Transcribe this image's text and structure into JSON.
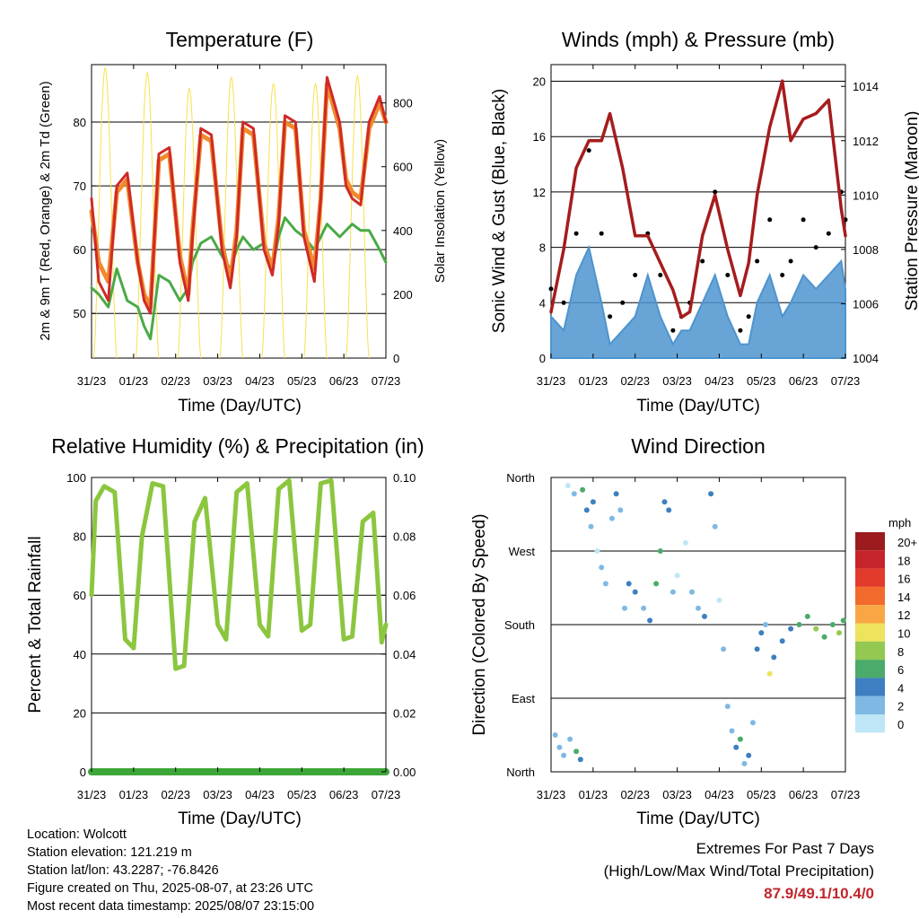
{
  "x_ticks": [
    "31/23",
    "01/23",
    "02/23",
    "03/23",
    "04/23",
    "05/23",
    "06/23",
    "07/23"
  ],
  "x_axis_label": "Time (Day/UTC)",
  "temperature": {
    "title": "Temperature (F)",
    "left_label": "2m & 9m T (Red, Orange) & 2m Td (Green)",
    "right_label": "Solar Insolation (Yellow)",
    "left_ticks": [
      "50",
      "60",
      "70",
      "80"
    ],
    "right_ticks": [
      "0",
      "200",
      "400",
      "600",
      "800"
    ],
    "colors": {
      "t2m": "#cf2a27",
      "t9m": "#f08a2c",
      "td": "#4aaa46",
      "solar": "#f7e14d"
    }
  },
  "winds": {
    "title": "Winds (mph) & Pressure (mb)",
    "left_label": "Sonic Wind & Gust (Blue, Black)",
    "right_label": "Station Pressure (Maroon)",
    "left_ticks": [
      "0",
      "4",
      "8",
      "12",
      "16",
      "20"
    ],
    "right_ticks": [
      "1004",
      "1006",
      "1008",
      "1010",
      "1012",
      "1014"
    ],
    "colors": {
      "wind": "#4d94cf",
      "gust": "#000000",
      "pressure": "#a61c1c"
    }
  },
  "humidity": {
    "title": "Relative Humidity (%) & Precipitation (in)",
    "left_label": "Percent & Total Rainfall",
    "left_ticks": [
      "0",
      "20",
      "40",
      "60",
      "80",
      "100"
    ],
    "right_ticks": [
      "0.00",
      "0.02",
      "0.04",
      "0.06",
      "0.08",
      "0.10"
    ],
    "colors": {
      "rh": "#8cc63f",
      "precip": "#3da638"
    }
  },
  "direction": {
    "title": "Wind Direction",
    "left_label": "Direction (Colored By Speed)",
    "y_ticks": [
      "North",
      "East",
      "South",
      "West",
      "North"
    ],
    "legend_title": "mph",
    "legend": [
      {
        "label": "20+",
        "color": "#9b1b1e"
      },
      {
        "label": "18",
        "color": "#c5242a"
      },
      {
        "label": "16",
        "color": "#e23b2b"
      },
      {
        "label": "14",
        "color": "#f26a2c"
      },
      {
        "label": "12",
        "color": "#f9a745"
      },
      {
        "label": "10",
        "color": "#ede35c"
      },
      {
        "label": "8",
        "color": "#93c951"
      },
      {
        "label": "6",
        "color": "#4aab6a"
      },
      {
        "label": "4",
        "color": "#3d7fc0"
      },
      {
        "label": "2",
        "color": "#7fb9e3"
      },
      {
        "label": "0",
        "color": "#bfe6f7"
      }
    ]
  },
  "info": {
    "location": "Location: Wolcott",
    "elevation": "Station elevation: 121.219 m",
    "latlon": "Station lat/lon: 43.2287; -76.8426",
    "created": "Figure created on Thu, 2025-08-07, at 23:26 UTC",
    "recent": "Most recent data timestamp: 2025/08/07 23:15:00"
  },
  "extremes": {
    "title": "Extremes For Past 7 Days",
    "subtitle": "(High/Low/Max Wind/Total Precipitation)",
    "values": "87.9/49.1/10.4/0"
  },
  "chart_data": [
    {
      "type": "line",
      "title": "Temperature (F)",
      "xlabel": "Time (Day/UTC)",
      "ylabel": "2m & 9m T (Red, Orange) & 2m Td (Green)",
      "y2label": "Solar Insolation (Yellow)",
      "ylim": [
        43,
        89
      ],
      "y2lim": [
        0,
        920
      ],
      "x_unit": "days since 31/23",
      "x": [
        0,
        0.17,
        0.4,
        0.6,
        0.85,
        1.1,
        1.25,
        1.4,
        1.6,
        1.85,
        2.1,
        2.3,
        2.4,
        2.6,
        2.85,
        3.1,
        3.3,
        3.45,
        3.6,
        3.85,
        4.1,
        4.3,
        4.45,
        4.6,
        4.85,
        5.05,
        5.3,
        5.45,
        5.6,
        5.9,
        6.05,
        6.2,
        6.4,
        6.6,
        6.85,
        7.0
      ],
      "series": [
        {
          "name": "2m T",
          "values": [
            68,
            55,
            52,
            70,
            72,
            58,
            52,
            50,
            75,
            76,
            58,
            52,
            62,
            79,
            78,
            60,
            54,
            62,
            80,
            79,
            60,
            56,
            64,
            81,
            80,
            62,
            55,
            68,
            87,
            80,
            70,
            68,
            67,
            80,
            84,
            80
          ]
        },
        {
          "name": "9m T",
          "values": [
            66,
            58,
            55,
            69,
            71,
            58,
            53,
            51,
            74,
            75,
            59,
            53,
            63,
            78,
            77,
            61,
            55,
            63,
            79,
            78,
            61,
            57,
            65,
            80,
            79,
            63,
            57,
            68,
            86,
            79,
            71,
            69,
            68,
            79,
            83,
            80
          ]
        },
        {
          "name": "2m Td",
          "values": [
            54,
            53,
            51,
            57,
            52,
            51,
            48,
            46,
            56,
            55,
            52,
            54,
            58,
            61,
            62,
            59,
            57,
            60,
            62,
            60,
            61,
            57,
            62,
            65,
            63,
            62,
            60,
            62,
            64,
            62,
            63,
            64,
            63,
            63,
            60,
            58
          ]
        },
        {
          "name": "Solar",
          "y_axis": "right",
          "values": [
            0,
            0,
            0,
            0,
            0,
            0,
            0,
            0,
            0,
            0,
            0,
            0,
            0,
            0,
            0,
            0,
            0,
            0,
            0,
            0,
            0,
            0,
            0,
            0,
            0,
            0,
            0,
            0,
            0,
            0,
            0,
            0,
            0,
            0,
            0,
            0
          ],
          "daily_peaks": [
            910,
            895,
            845,
            880,
            860,
            860,
            885
          ]
        }
      ]
    },
    {
      "type": "line",
      "title": "Winds (mph) & Pressure (mb)",
      "xlabel": "Time (Day/UTC)",
      "ylabel": "Sonic Wind & Gust (Blue, Black)",
      "y2label": "Station Pressure (Maroon)",
      "ylim": [
        0,
        21.2
      ],
      "y2lim": [
        1004,
        1014.8
      ],
      "x_unit": "days since 31/23",
      "x": [
        0,
        0.3,
        0.6,
        0.9,
        1.2,
        1.4,
        1.7,
        2.0,
        2.3,
        2.6,
        2.9,
        3.1,
        3.3,
        3.6,
        3.9,
        4.2,
        4.5,
        4.7,
        4.9,
        5.2,
        5.5,
        5.7,
        6.0,
        6.3,
        6.6,
        6.9,
        7.0
      ],
      "series": [
        {
          "name": "Sonic Wind",
          "values": [
            3,
            2,
            6,
            8,
            4,
            1,
            2,
            3,
            6,
            3,
            1,
            2,
            2,
            4,
            6,
            3,
            1,
            1,
            4,
            6,
            3,
            4,
            6,
            5,
            6,
            7,
            5
          ]
        },
        {
          "name": "Gust",
          "values": [
            5,
            4,
            9,
            15,
            9,
            3,
            4,
            6,
            9,
            6,
            2,
            3,
            4,
            7,
            12,
            6,
            2,
            3,
            7,
            10,
            6,
            7,
            10,
            8,
            9,
            12,
            10
          ]
        },
        {
          "name": "Station Pressure",
          "y_axis": "right",
          "values": [
            1005.7,
            1008.0,
            1011.0,
            1012.0,
            1012.0,
            1013.0,
            1011.0,
            1008.5,
            1008.5,
            1007.5,
            1006.5,
            1005.5,
            1005.7,
            1008.5,
            1010.0,
            1008.0,
            1006.3,
            1007.5,
            1010.0,
            1012.5,
            1014.2,
            1012.0,
            1012.8,
            1013.0,
            1013.5,
            1009.5,
            1008.5
          ]
        }
      ]
    },
    {
      "type": "line",
      "title": "Relative Humidity (%) & Precipitation (in)",
      "xlabel": "Time (Day/UTC)",
      "ylabel": "Percent & Total Rainfall",
      "ylim": [
        0,
        100
      ],
      "y2lim": [
        0,
        0.1
      ],
      "x_unit": "days since 31/23",
      "x": [
        0,
        0.1,
        0.3,
        0.55,
        0.8,
        1.0,
        1.2,
        1.45,
        1.7,
        2.0,
        2.2,
        2.45,
        2.7,
        3.0,
        3.2,
        3.45,
        3.7,
        4.0,
        4.2,
        4.45,
        4.7,
        5.0,
        5.2,
        5.45,
        5.7,
        6.0,
        6.2,
        6.45,
        6.7,
        6.9,
        7.0
      ],
      "series": [
        {
          "name": "Relative Humidity",
          "values": [
            60,
            92,
            97,
            95,
            45,
            42,
            80,
            98,
            97,
            35,
            36,
            85,
            93,
            50,
            45,
            95,
            98,
            50,
            46,
            96,
            99,
            48,
            50,
            98,
            99,
            45,
            46,
            85,
            88,
            44,
            50
          ]
        },
        {
          "name": "Total Precipitation",
          "y_axis": "right",
          "values": [
            0,
            0,
            0,
            0,
            0,
            0,
            0,
            0,
            0,
            0,
            0,
            0,
            0,
            0,
            0,
            0,
            0,
            0,
            0,
            0,
            0,
            0,
            0,
            0,
            0,
            0,
            0,
            0,
            0,
            0,
            0
          ]
        }
      ]
    },
    {
      "type": "scatter",
      "title": "Wind Direction",
      "xlabel": "Time (Day/UTC)",
      "ylabel": "Direction (Colored By Speed)",
      "y_ticks": [
        "North",
        "East",
        "South",
        "West",
        "North"
      ],
      "ylim": [
        0,
        360
      ],
      "x_unit": "days since 31/23",
      "color_by": "speed (mph)",
      "points": [
        {
          "x": 0.1,
          "y": 45,
          "s": 2
        },
        {
          "x": 0.2,
          "y": 30,
          "s": 3
        },
        {
          "x": 0.3,
          "y": 20,
          "s": 2
        },
        {
          "x": 0.45,
          "y": 40,
          "s": 3
        },
        {
          "x": 0.6,
          "y": 25,
          "s": 6
        },
        {
          "x": 0.7,
          "y": 15,
          "s": 4
        },
        {
          "x": 0.4,
          "y": 350,
          "s": 1
        },
        {
          "x": 0.55,
          "y": 340,
          "s": 2
        },
        {
          "x": 0.75,
          "y": 345,
          "s": 6
        },
        {
          "x": 0.85,
          "y": 320,
          "s": 4
        },
        {
          "x": 0.95,
          "y": 300,
          "s": 3
        },
        {
          "x": 1.0,
          "y": 330,
          "s": 5
        },
        {
          "x": 1.1,
          "y": 270,
          "s": 1
        },
        {
          "x": 1.2,
          "y": 250,
          "s": 2
        },
        {
          "x": 1.3,
          "y": 230,
          "s": 2
        },
        {
          "x": 1.45,
          "y": 310,
          "s": 3
        },
        {
          "x": 1.55,
          "y": 340,
          "s": 4
        },
        {
          "x": 1.65,
          "y": 320,
          "s": 3
        },
        {
          "x": 1.75,
          "y": 200,
          "s": 3
        },
        {
          "x": 1.85,
          "y": 230,
          "s": 4
        },
        {
          "x": 2.0,
          "y": 220,
          "s": 4
        },
        {
          "x": 2.2,
          "y": 200,
          "s": 3
        },
        {
          "x": 2.35,
          "y": 185,
          "s": 4
        },
        {
          "x": 2.5,
          "y": 230,
          "s": 7
        },
        {
          "x": 2.6,
          "y": 270,
          "s": 6
        },
        {
          "x": 2.7,
          "y": 330,
          "s": 5
        },
        {
          "x": 2.8,
          "y": 320,
          "s": 4
        },
        {
          "x": 2.9,
          "y": 220,
          "s": 2
        },
        {
          "x": 3.0,
          "y": 240,
          "s": 1
        },
        {
          "x": 3.2,
          "y": 280,
          "s": 1
        },
        {
          "x": 3.35,
          "y": 220,
          "s": 2
        },
        {
          "x": 3.5,
          "y": 200,
          "s": 3
        },
        {
          "x": 3.65,
          "y": 190,
          "s": 4
        },
        {
          "x": 3.8,
          "y": 340,
          "s": 4
        },
        {
          "x": 3.9,
          "y": 300,
          "s": 3
        },
        {
          "x": 4.0,
          "y": 210,
          "s": 1
        },
        {
          "x": 4.1,
          "y": 150,
          "s": 2
        },
        {
          "x": 4.2,
          "y": 80,
          "s": 2
        },
        {
          "x": 4.3,
          "y": 50,
          "s": 3
        },
        {
          "x": 4.4,
          "y": 30,
          "s": 4
        },
        {
          "x": 4.5,
          "y": 40,
          "s": 6
        },
        {
          "x": 4.6,
          "y": 10,
          "s": 3
        },
        {
          "x": 4.7,
          "y": 20,
          "s": 4
        },
        {
          "x": 4.8,
          "y": 60,
          "s": 3
        },
        {
          "x": 4.9,
          "y": 150,
          "s": 4
        },
        {
          "x": 5.0,
          "y": 170,
          "s": 4
        },
        {
          "x": 5.1,
          "y": 180,
          "s": 3
        },
        {
          "x": 5.2,
          "y": 120,
          "s": 10
        },
        {
          "x": 5.3,
          "y": 140,
          "s": 5
        },
        {
          "x": 5.5,
          "y": 160,
          "s": 4
        },
        {
          "x": 5.7,
          "y": 175,
          "s": 5
        },
        {
          "x": 5.9,
          "y": 180,
          "s": 6
        },
        {
          "x": 6.1,
          "y": 190,
          "s": 7
        },
        {
          "x": 6.3,
          "y": 175,
          "s": 8
        },
        {
          "x": 6.5,
          "y": 165,
          "s": 6
        },
        {
          "x": 6.7,
          "y": 180,
          "s": 7
        },
        {
          "x": 6.85,
          "y": 170,
          "s": 8
        },
        {
          "x": 6.95,
          "y": 185,
          "s": 6
        }
      ]
    }
  ]
}
